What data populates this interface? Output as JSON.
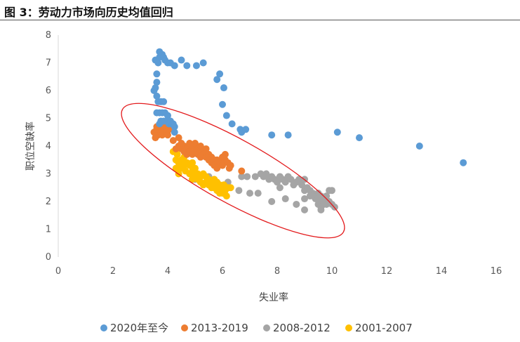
{
  "figure": {
    "title": "图 3：劳动力市场向历史均值回归"
  },
  "chart_data": {
    "type": "scatter",
    "title": "图 3：劳动力市场向历史均值回归",
    "xlabel": "失业率",
    "ylabel": "职位空缺率",
    "xlim": [
      0,
      16
    ],
    "ylim": [
      0,
      8
    ],
    "x_ticks": [
      0,
      2,
      4,
      6,
      8,
      10,
      12,
      14,
      16
    ],
    "y_ticks": [
      0,
      1,
      2,
      3,
      4,
      5,
      6,
      7,
      8
    ],
    "grid": false,
    "legend_position": "bottom",
    "annotation": "red ellipse enclosing the 2001–2019 historical relationship",
    "series": [
      {
        "name": "2020年至今",
        "color": "#5B9BD5",
        "points": [
          [
            3.5,
            6.0
          ],
          [
            3.55,
            6.1
          ],
          [
            3.6,
            6.3
          ],
          [
            3.6,
            6.6
          ],
          [
            3.55,
            7.1
          ],
          [
            3.65,
            7.0
          ],
          [
            3.7,
            7.2
          ],
          [
            3.7,
            7.4
          ],
          [
            3.8,
            7.3
          ],
          [
            3.85,
            7.2
          ],
          [
            3.9,
            7.1
          ],
          [
            4.0,
            7.0
          ],
          [
            4.1,
            7.0
          ],
          [
            4.25,
            6.9
          ],
          [
            4.5,
            7.1
          ],
          [
            4.7,
            6.9
          ],
          [
            5.05,
            6.9
          ],
          [
            5.3,
            7.0
          ],
          [
            5.8,
            6.4
          ],
          [
            5.9,
            6.6
          ],
          [
            6.05,
            6.1
          ],
          [
            6.0,
            5.5
          ],
          [
            6.15,
            5.1
          ],
          [
            6.35,
            4.8
          ],
          [
            6.65,
            4.6
          ],
          [
            6.7,
            4.5
          ],
          [
            6.85,
            4.6
          ],
          [
            7.8,
            4.4
          ],
          [
            8.4,
            4.4
          ],
          [
            10.2,
            4.5
          ],
          [
            11.0,
            4.3
          ],
          [
            13.2,
            4.0
          ],
          [
            14.8,
            3.4
          ],
          [
            3.6,
            5.2
          ],
          [
            3.7,
            5.2
          ],
          [
            3.8,
            5.2
          ],
          [
            3.9,
            5.2
          ],
          [
            4.0,
            5.1
          ],
          [
            3.65,
            5.6
          ],
          [
            3.75,
            5.6
          ],
          [
            3.85,
            5.6
          ],
          [
            3.6,
            5.8
          ],
          [
            3.75,
            4.9
          ],
          [
            3.85,
            4.9
          ],
          [
            3.95,
            4.9
          ],
          [
            4.05,
            4.8
          ],
          [
            4.15,
            4.8
          ],
          [
            4.25,
            4.7
          ],
          [
            4.25,
            4.5
          ],
          [
            4.2,
            4.8
          ],
          [
            4.1,
            4.9
          ],
          [
            3.7,
            4.8
          ]
        ]
      },
      {
        "name": "2013-2019",
        "color": "#ED7D31",
        "points": [
          [
            3.5,
            4.5
          ],
          [
            3.6,
            4.6
          ],
          [
            3.7,
            4.7
          ],
          [
            3.65,
            4.4
          ],
          [
            3.75,
            4.5
          ],
          [
            3.8,
            4.4
          ],
          [
            3.85,
            4.6
          ],
          [
            3.9,
            4.7
          ],
          [
            3.95,
            4.5
          ],
          [
            4.0,
            4.4
          ],
          [
            3.6,
            4.7
          ],
          [
            4.05,
            4.6
          ],
          [
            3.55,
            4.3
          ],
          [
            4.4,
            4.0
          ],
          [
            4.5,
            3.9
          ],
          [
            4.6,
            4.0
          ],
          [
            4.7,
            3.9
          ],
          [
            4.8,
            4.1
          ],
          [
            4.9,
            4.0
          ],
          [
            5.0,
            4.1
          ],
          [
            5.1,
            3.9
          ],
          [
            5.2,
            4.0
          ],
          [
            5.3,
            3.8
          ],
          [
            4.6,
            3.8
          ],
          [
            4.7,
            3.7
          ],
          [
            4.8,
            3.8
          ],
          [
            4.9,
            3.7
          ],
          [
            5.0,
            3.8
          ],
          [
            5.1,
            3.7
          ],
          [
            5.2,
            3.6
          ],
          [
            5.3,
            3.7
          ],
          [
            5.4,
            3.6
          ],
          [
            5.5,
            3.7
          ],
          [
            5.6,
            3.6
          ],
          [
            5.7,
            3.5
          ],
          [
            5.5,
            3.5
          ],
          [
            5.6,
            3.4
          ],
          [
            5.7,
            3.3
          ],
          [
            5.8,
            3.5
          ],
          [
            5.9,
            3.4
          ],
          [
            6.0,
            3.3
          ],
          [
            6.1,
            3.5
          ],
          [
            6.2,
            3.4
          ],
          [
            6.1,
            3.7
          ],
          [
            6.3,
            3.3
          ],
          [
            6.25,
            3.2
          ],
          [
            6.7,
            3.1
          ],
          [
            5.8,
            3.2
          ],
          [
            6.0,
            3.6
          ],
          [
            4.5,
            4.1
          ],
          [
            4.3,
            3.9
          ],
          [
            5.4,
            3.9
          ],
          [
            4.2,
            4.2
          ],
          [
            4.4,
            4.3
          ]
        ]
      },
      {
        "name": "2008-2012",
        "color": "#A5A5A5",
        "points": [
          [
            4.9,
            2.8
          ],
          [
            5.0,
            2.8
          ],
          [
            5.5,
            2.9
          ],
          [
            6.2,
            2.7
          ],
          [
            6.6,
            2.4
          ],
          [
            6.7,
            2.9
          ],
          [
            6.9,
            2.9
          ],
          [
            7.0,
            2.3
          ],
          [
            7.2,
            2.9
          ],
          [
            7.3,
            2.3
          ],
          [
            7.4,
            3.0
          ],
          [
            7.5,
            2.9
          ],
          [
            7.6,
            3.0
          ],
          [
            7.7,
            2.8
          ],
          [
            7.8,
            2.9
          ],
          [
            7.9,
            2.8
          ],
          [
            8.0,
            2.7
          ],
          [
            8.1,
            2.9
          ],
          [
            8.2,
            2.8
          ],
          [
            8.3,
            2.7
          ],
          [
            8.4,
            2.9
          ],
          [
            8.5,
            2.8
          ],
          [
            8.6,
            2.6
          ],
          [
            8.7,
            2.7
          ],
          [
            8.8,
            2.8
          ],
          [
            8.9,
            2.6
          ],
          [
            9.0,
            2.4
          ],
          [
            9.0,
            2.8
          ],
          [
            9.1,
            2.5
          ],
          [
            9.2,
            2.4
          ],
          [
            9.3,
            2.3
          ],
          [
            9.4,
            2.1
          ],
          [
            9.5,
            2.3
          ],
          [
            9.5,
            1.9
          ],
          [
            9.6,
            1.8
          ],
          [
            9.6,
            2.2
          ],
          [
            9.7,
            1.9
          ],
          [
            9.7,
            2.0
          ],
          [
            9.8,
            1.9
          ],
          [
            9.8,
            2.2
          ],
          [
            9.9,
            2.0
          ],
          [
            9.9,
            2.4
          ],
          [
            10.0,
            1.9
          ],
          [
            10.0,
            2.4
          ],
          [
            10.1,
            1.8
          ],
          [
            9.6,
            1.7
          ],
          [
            9.0,
            1.7
          ],
          [
            8.7,
            1.9
          ],
          [
            8.3,
            2.1
          ],
          [
            7.8,
            2.0
          ],
          [
            9.2,
            2.2
          ],
          [
            8.1,
            2.5
          ],
          [
            9.0,
            2.1
          ],
          [
            9.3,
            2.2
          ],
          [
            9.5,
            2.1
          ]
        ]
      },
      {
        "name": "2001-2007",
        "color": "#FFC000",
        "points": [
          [
            4.2,
            3.8
          ],
          [
            4.3,
            3.5
          ],
          [
            4.35,
            3.7
          ],
          [
            4.4,
            3.4
          ],
          [
            4.5,
            3.5
          ],
          [
            4.6,
            3.6
          ],
          [
            4.7,
            3.4
          ],
          [
            4.8,
            3.3
          ],
          [
            4.3,
            3.2
          ],
          [
            4.5,
            3.2
          ],
          [
            4.65,
            3.1
          ],
          [
            4.8,
            3.0
          ],
          [
            4.9,
            3.1
          ],
          [
            5.0,
            3.2
          ],
          [
            5.1,
            3.0
          ],
          [
            5.2,
            2.9
          ],
          [
            5.3,
            3.0
          ],
          [
            5.4,
            2.9
          ],
          [
            5.5,
            2.8
          ],
          [
            5.6,
            2.7
          ],
          [
            5.7,
            2.8
          ],
          [
            5.8,
            2.7
          ],
          [
            5.9,
            2.6
          ],
          [
            6.0,
            2.5
          ],
          [
            6.1,
            2.4
          ],
          [
            6.2,
            2.5
          ],
          [
            6.3,
            2.5
          ],
          [
            5.8,
            2.4
          ],
          [
            5.9,
            2.3
          ],
          [
            6.0,
            2.3
          ],
          [
            6.15,
            2.2
          ],
          [
            5.2,
            2.7
          ],
          [
            5.3,
            2.6
          ],
          [
            5.5,
            2.6
          ],
          [
            4.9,
            2.8
          ],
          [
            5.1,
            2.8
          ],
          [
            5.4,
            2.7
          ],
          [
            5.6,
            2.5
          ],
          [
            4.4,
            3.0
          ],
          [
            4.6,
            3.3
          ],
          [
            4.9,
            3.4
          ],
          [
            5.0,
            2.9
          ],
          [
            5.7,
            2.5
          ],
          [
            6.05,
            2.6
          ]
        ]
      }
    ]
  }
}
